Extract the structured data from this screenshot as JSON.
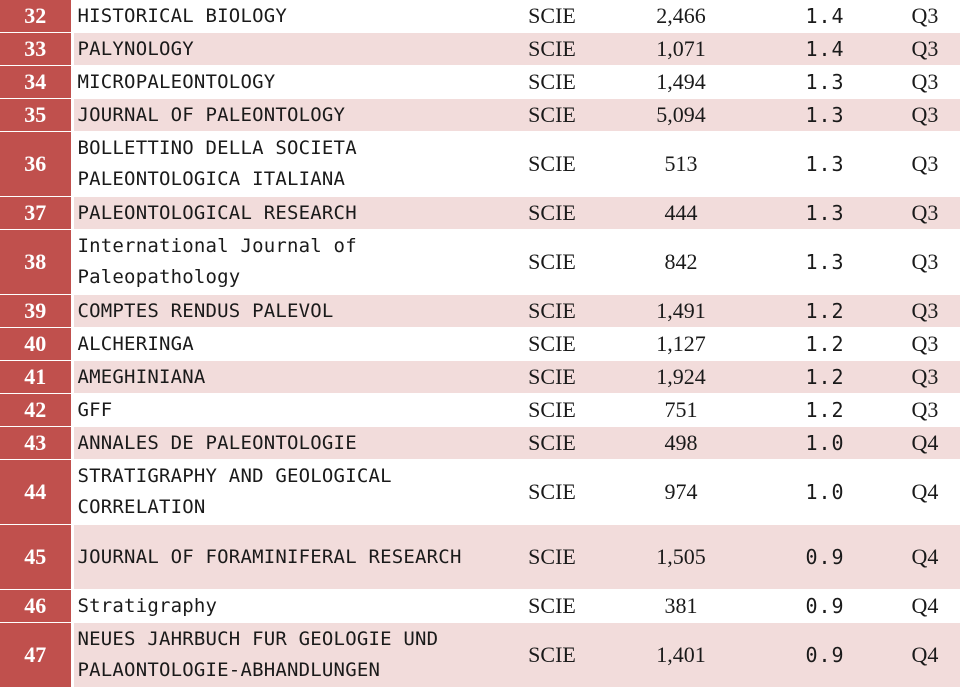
{
  "colors": {
    "rank_cell_bg": "#c0504d",
    "stripe_bg": "#f2dcdb",
    "plain_bg": "#ffffff"
  },
  "rows": [
    {
      "rank": "32",
      "name": "HISTORICAL BIOLOGY",
      "index": "SCIE",
      "cites": "2,466",
      "impact": "1.4",
      "quartile": "Q3"
    },
    {
      "rank": "33",
      "name": "PALYNOLOGY",
      "index": "SCIE",
      "cites": "1,071",
      "impact": "1.4",
      "quartile": "Q3"
    },
    {
      "rank": "34",
      "name": "MICROPALEONTOLOGY",
      "index": "SCIE",
      "cites": "1,494",
      "impact": "1.3",
      "quartile": "Q3"
    },
    {
      "rank": "35",
      "name": "JOURNAL OF PALEONTOLOGY",
      "index": "SCIE",
      "cites": "5,094",
      "impact": "1.3",
      "quartile": "Q3"
    },
    {
      "rank": "36",
      "name": "BOLLETTINO DELLA SOCIETA PALEONTOLOGICA ITALIANA",
      "index": "SCIE",
      "cites": "513",
      "impact": "1.3",
      "quartile": "Q3"
    },
    {
      "rank": "37",
      "name": "PALEONTOLOGICAL RESEARCH",
      "index": "SCIE",
      "cites": "444",
      "impact": "1.3",
      "quartile": "Q3"
    },
    {
      "rank": "38",
      "name": "International Journal of Paleopathology",
      "index": "SCIE",
      "cites": "842",
      "impact": "1.3",
      "quartile": "Q3"
    },
    {
      "rank": "39",
      "name": "COMPTES RENDUS PALEVOL",
      "index": "SCIE",
      "cites": "1,491",
      "impact": "1.2",
      "quartile": "Q3"
    },
    {
      "rank": "40",
      "name": "ALCHERINGA",
      "index": "SCIE",
      "cites": "1,127",
      "impact": "1.2",
      "quartile": "Q3"
    },
    {
      "rank": "41",
      "name": "AMEGHINIANA",
      "index": "SCIE",
      "cites": "1,924",
      "impact": "1.2",
      "quartile": "Q3"
    },
    {
      "rank": "42",
      "name": "GFF",
      "index": "SCIE",
      "cites": "751",
      "impact": "1.2",
      "quartile": "Q3"
    },
    {
      "rank": "43",
      "name": "ANNALES DE PALEONTOLOGIE",
      "index": "SCIE",
      "cites": "498",
      "impact": "1.0",
      "quartile": "Q4"
    },
    {
      "rank": "44",
      "name": "STRATIGRAPHY AND GEOLOGICAL CORRELATION",
      "index": "SCIE",
      "cites": "974",
      "impact": "1.0",
      "quartile": "Q4"
    },
    {
      "rank": "45",
      "name": "JOURNAL OF FORAMINIFERAL RESEARCH",
      "index": "SCIE",
      "cites": "1,505",
      "impact": "0.9",
      "quartile": "Q4"
    },
    {
      "rank": "46",
      "name": "Stratigraphy",
      "index": "SCIE",
      "cites": "381",
      "impact": "0.9",
      "quartile": "Q4"
    },
    {
      "rank": "47",
      "name": "NEUES JAHRBUCH FUR GEOLOGIE UND PALAONTOLOGIE-ABHANDLUNGEN",
      "index": "SCIE",
      "cites": "1,401",
      "impact": "0.9",
      "quartile": "Q4"
    }
  ]
}
